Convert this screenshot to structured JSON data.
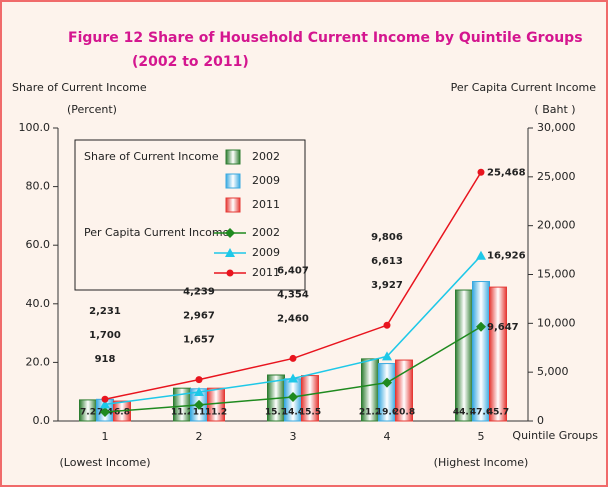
{
  "chart_data": {
    "type": "bar_line",
    "title": "Figure   12  Share of Household Current Income by Quintile Groups",
    "subtitle": "(2002 to 2011)",
    "y_label": "Share of Current Income",
    "y_unit": "(Percent)",
    "y2_label": "Per Capita Current Income",
    "y2_unit": "( Baht )",
    "x_label": "Quintile Groups",
    "categories": [
      "1",
      "2",
      "3",
      "4",
      "5"
    ],
    "category_notes": [
      "(Lowest Income)",
      null,
      null,
      null,
      "(Highest Income)"
    ],
    "ylim": [
      0,
      100
    ],
    "yticks": [
      {
        "value": 0,
        "label": "0.0"
      },
      {
        "value": 20,
        "label": "20.0"
      },
      {
        "value": 40,
        "label": "40.0"
      },
      {
        "value": 60,
        "label": "60.0"
      },
      {
        "value": 80,
        "label": "80.0"
      },
      {
        "value": 100,
        "label": "100.0"
      }
    ],
    "y2lim": [
      0,
      30000
    ],
    "y2ticks": [
      0,
      {
        "value": 5000,
        "label": "5,000"
      },
      {
        "value": 10000,
        "label": "10,000"
      },
      {
        "value": 15000,
        "label": "15,000"
      },
      {
        "value": 20000,
        "label": "20,000"
      },
      {
        "value": 25000,
        "label": "25,000"
      },
      {
        "value": 30000,
        "label": "30,000"
      }
    ],
    "legend_titles": [
      "Share of Current Income",
      "Per Capita Current Income"
    ],
    "bar_series": [
      {
        "name": "2002",
        "color": "#2e7d32",
        "values": [
          7.2,
          11.2,
          15.7,
          21.2,
          44.7
        ]
      },
      {
        "name": "2009",
        "color": "#39a9e0",
        "values": [
          7.4,
          11.0,
          14.4,
          19.6,
          47.6
        ]
      },
      {
        "name": "2011",
        "color": "#e53935",
        "values": [
          6.8,
          11.2,
          15.5,
          20.8,
          45.7
        ]
      }
    ],
    "line_series": [
      {
        "name": "2002",
        "color": "#1f8a1f",
        "marker": "diamond",
        "axis": "y2",
        "values": [
          918,
          1657,
          2460,
          3927,
          9647
        ],
        "value_labels": [
          "918",
          "1,657",
          "2,460",
          "3,927",
          "9,647"
        ]
      },
      {
        "name": "2009",
        "color": "#1ec8e8",
        "marker": "triangle",
        "axis": "y2",
        "values": [
          1700,
          2967,
          4354,
          6613,
          16926
        ],
        "value_labels": [
          "1,700",
          "2,967",
          "4,354",
          "6,613",
          "16,926"
        ]
      },
      {
        "name": "2011",
        "color": "#e8141e",
        "marker": "circle",
        "axis": "y2",
        "values": [
          2231,
          4239,
          6407,
          9806,
          25468
        ],
        "value_labels": [
          "2,231",
          "4,239",
          "6,407",
          "9,806",
          "25,468"
        ]
      }
    ]
  }
}
